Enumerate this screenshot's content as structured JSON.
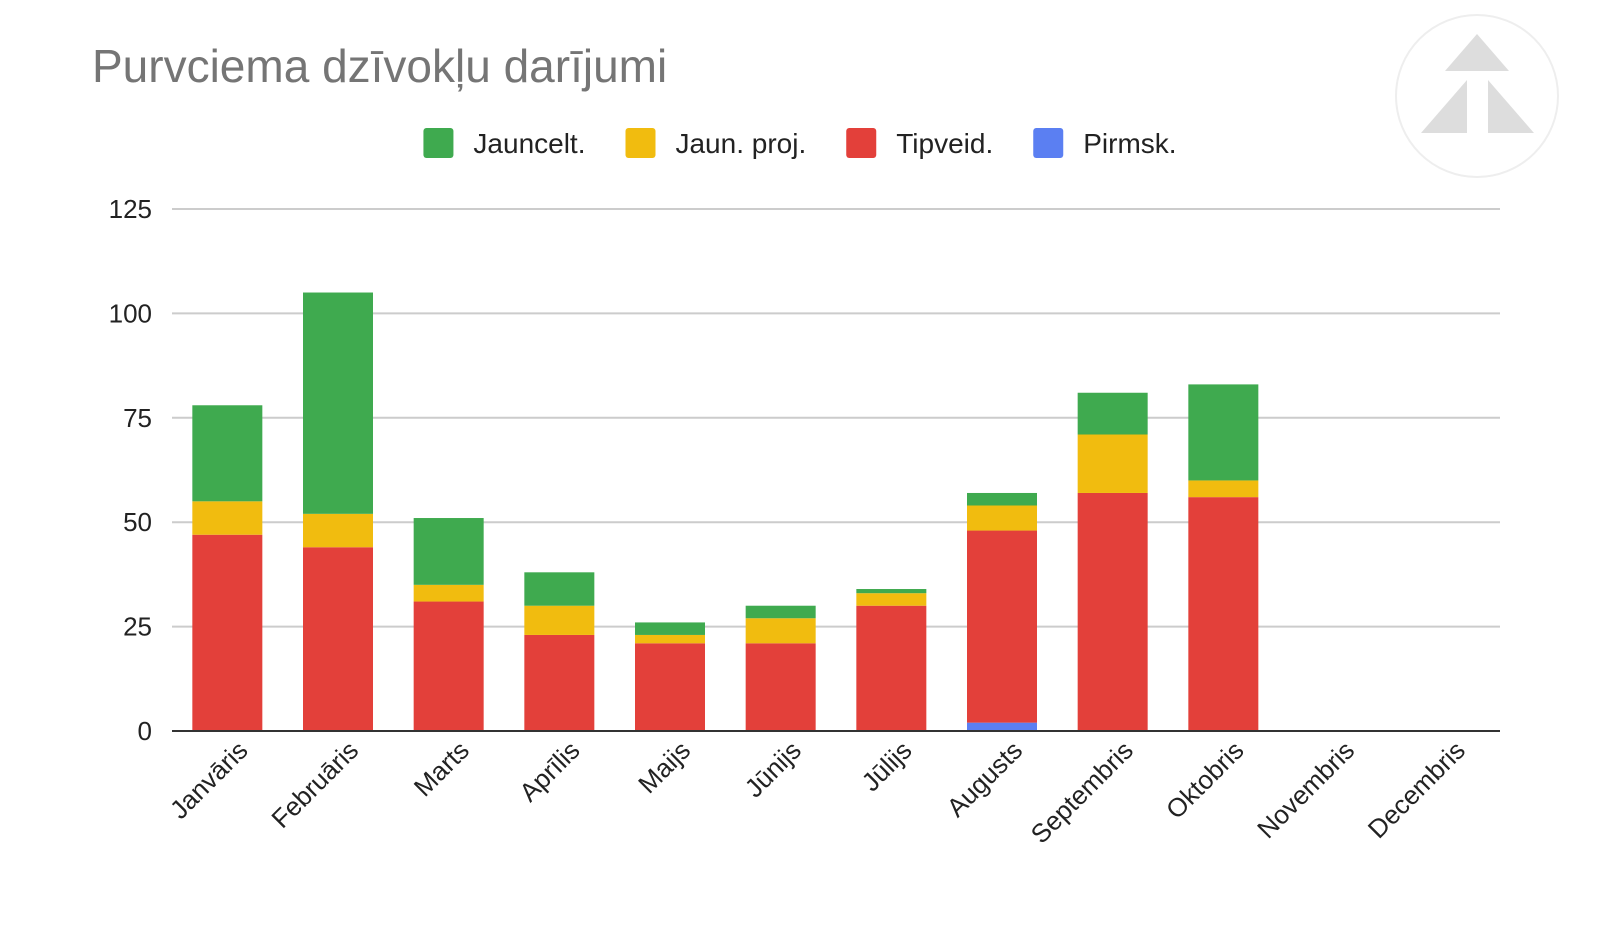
{
  "chart_data": {
    "type": "bar",
    "stacked": true,
    "title": "Purvciema dzīvokļu darījumi",
    "xlabel": "",
    "ylabel": "",
    "ylim": [
      0,
      125
    ],
    "yticks": [
      "0",
      "25",
      "50",
      "75",
      "100",
      "125"
    ],
    "grid": true,
    "legend_position": "top",
    "categories": [
      "Janvāris",
      "Februāris",
      "Marts",
      "Aprīlis",
      "Maijs",
      "Jūnijs",
      "Jūlijs",
      "Augusts",
      "Septembris",
      "Oktobris",
      "Novembris",
      "Decembris"
    ],
    "series": [
      {
        "name": "Pirmsk.",
        "color": "#5b7ff2",
        "values": [
          0,
          0,
          0,
          0,
          0,
          0,
          0,
          2,
          0,
          0,
          0,
          0
        ]
      },
      {
        "name": "Tipveid.",
        "color": "#e3403a",
        "values": [
          47,
          44,
          31,
          23,
          21,
          21,
          30,
          46,
          57,
          56,
          0,
          0
        ]
      },
      {
        "name": "Jaun. proj.",
        "color": "#f1bc0f",
        "values": [
          8,
          8,
          4,
          7,
          2,
          6,
          3,
          6,
          14,
          4,
          0,
          0
        ]
      },
      {
        "name": "Jauncelt.",
        "color": "#3faa4f",
        "values": [
          23,
          53,
          16,
          8,
          3,
          3,
          1,
          3,
          10,
          23,
          0,
          0
        ]
      }
    ],
    "legend_order": [
      "Jauncelt.",
      "Jaun. proj.",
      "Tipveid.",
      "Pirmsk."
    ]
  },
  "logo": {
    "icon": "triangle-logo-icon",
    "color": "#dddddd"
  }
}
